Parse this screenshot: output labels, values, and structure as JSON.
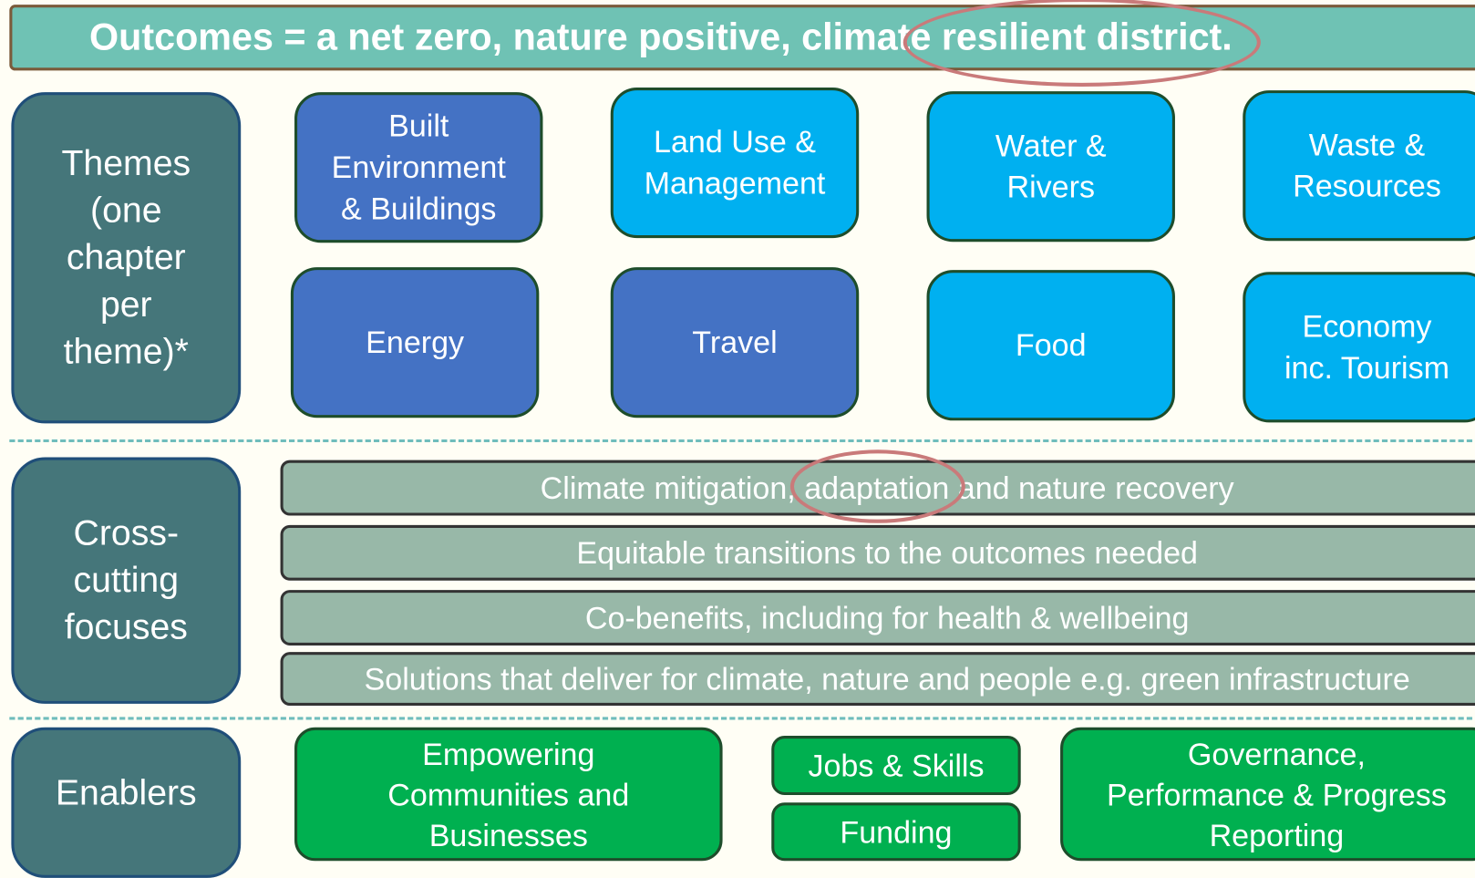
{
  "header": {
    "title": "Outcomes = a net zero, nature positive, climate resilient district."
  },
  "themes": {
    "label": "Themes\n(one\nchapter\nper\ntheme)*",
    "items": [
      "Built\nEnvironment\n& Buildings",
      "Land Use &\nManagement",
      "Water &\nRivers",
      "Waste &\nResources",
      "Energy",
      "Travel",
      "Food",
      "Economy\ninc. Tourism"
    ]
  },
  "cross_cutting": {
    "label": "Cross-\ncutting\nfocuses",
    "items": [
      "Climate mitigation, adaptation and nature recovery",
      "Equitable transitions to the outcomes needed",
      "Co-benefits, including for health & wellbeing",
      "Solutions that deliver for climate, nature and people e.g. green infrastructure"
    ]
  },
  "enablers": {
    "label": "Enablers",
    "items": [
      "Empowering\nCommunities and\nBusinesses",
      "Jobs & Skills",
      "Funding",
      "Governance,\nPerformance & Progress\nReporting"
    ]
  }
}
